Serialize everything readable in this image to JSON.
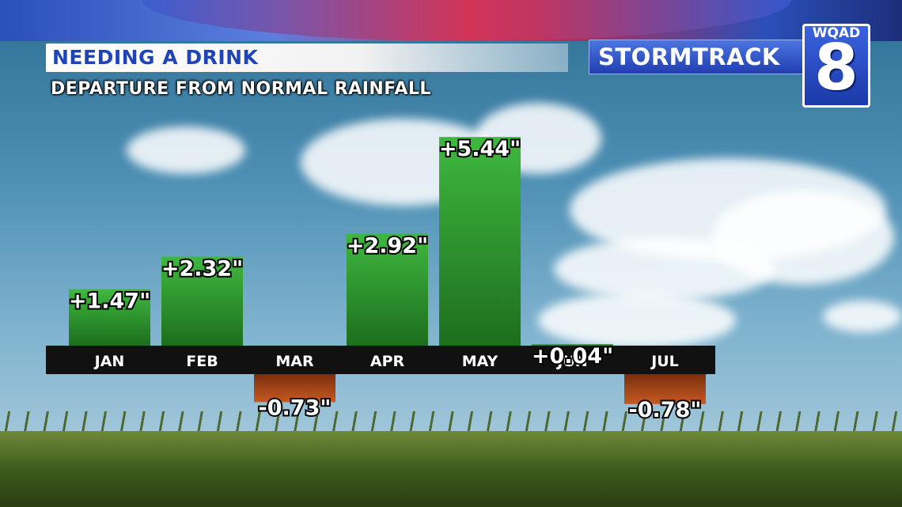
{
  "title": "NEEDING A DRINK",
  "subtitle": "DEPARTURE FROM NORMAL RAINFALL",
  "branding": {
    "stormtrack": "STORMTRACK",
    "station": "WQAD",
    "channel": "8"
  },
  "chart_data": {
    "type": "bar",
    "title": "NEEDING A DRINK",
    "subtitle": "DEPARTURE FROM NORMAL RAINFALL",
    "categories": [
      "JAN",
      "FEB",
      "MAR",
      "APR",
      "MAY",
      "JUN",
      "JUL"
    ],
    "values": [
      1.47,
      2.32,
      -0.73,
      2.92,
      5.44,
      0.04,
      -0.78
    ],
    "value_labels": [
      "+1.47\"",
      "+2.32\"",
      "-0.73\"",
      "+2.92\"",
      "+5.44\"",
      "+0.04\"",
      "-0.78\""
    ],
    "ylim": [
      -1.5,
      5.44
    ],
    "grid": false,
    "colors": {
      "positive": "#2e9a2e",
      "negative": "#b8501c",
      "axis_band": "#111111"
    }
  }
}
